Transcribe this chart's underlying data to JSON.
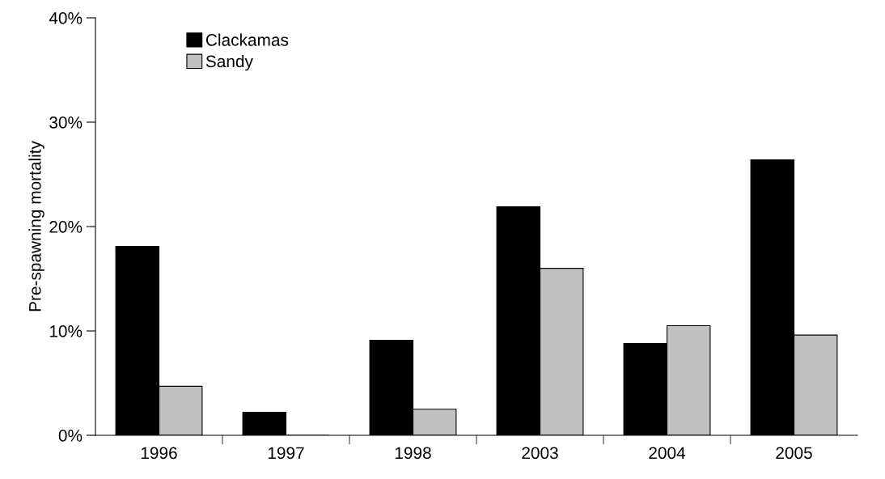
{
  "chart_data": {
    "type": "bar",
    "ylabel": "Pre-spawning mortality",
    "categories": [
      "1996",
      "1997",
      "1998",
      "2003",
      "2004",
      "2005"
    ],
    "series": [
      {
        "name": "Clackamas",
        "color": "#000000",
        "values": [
          18.1,
          2.2,
          9.1,
          21.9,
          8.8,
          26.4
        ]
      },
      {
        "name": "Sandy",
        "color": "#c0c0c0",
        "values": [
          4.7,
          0,
          2.5,
          16.0,
          10.5,
          9.6
        ]
      }
    ],
    "ylim": [
      0,
      40
    ],
    "yticks": [
      {
        "value": 0,
        "label": "0%"
      },
      {
        "value": 10,
        "label": "10%"
      },
      {
        "value": 20,
        "label": "20%"
      },
      {
        "value": 30,
        "label": "30%"
      },
      {
        "value": 40,
        "label": "40%"
      }
    ],
    "grid": false,
    "legend": "top left"
  }
}
